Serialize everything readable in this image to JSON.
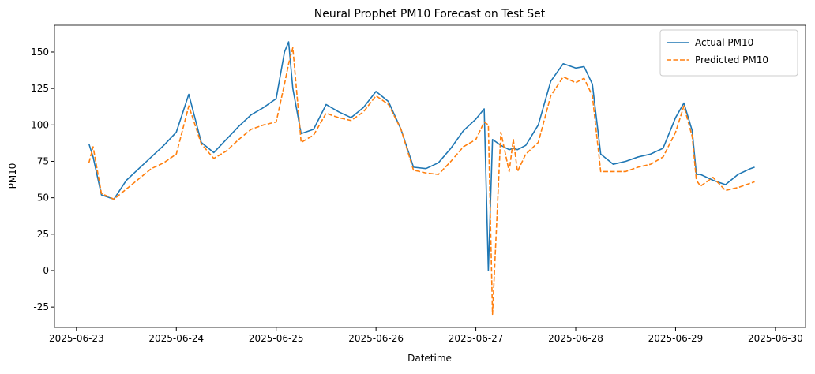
{
  "chart_data": {
    "type": "line",
    "title": "Neural Prophet PM10 Forecast on Test Set",
    "x_label": "Datetime",
    "y_label": "PM10",
    "x": [
      "2025-06-23T03:00",
      "2025-06-23T04:00",
      "2025-06-23T06:00",
      "2025-06-23T09:00",
      "2025-06-23T12:00",
      "2025-06-23T15:00",
      "2025-06-23T18:00",
      "2025-06-23T21:00",
      "2025-06-24T00:00",
      "2025-06-24T03:00",
      "2025-06-24T06:00",
      "2025-06-24T09:00",
      "2025-06-24T12:00",
      "2025-06-24T15:00",
      "2025-06-24T18:00",
      "2025-06-24T21:00",
      "2025-06-25T00:00",
      "2025-06-25T02:00",
      "2025-06-25T03:00",
      "2025-06-25T04:00",
      "2025-06-25T06:00",
      "2025-06-25T09:00",
      "2025-06-25T12:00",
      "2025-06-25T15:00",
      "2025-06-25T18:00",
      "2025-06-25T21:00",
      "2025-06-26T00:00",
      "2025-06-26T03:00",
      "2025-06-26T06:00",
      "2025-06-26T09:00",
      "2025-06-26T12:00",
      "2025-06-26T15:00",
      "2025-06-26T18:00",
      "2025-06-26T21:00",
      "2025-06-27T00:00",
      "2025-06-27T02:00",
      "2025-06-27T03:00",
      "2025-06-27T04:00",
      "2025-06-27T06:00",
      "2025-06-27T08:00",
      "2025-06-27T09:00",
      "2025-06-27T10:00",
      "2025-06-27T12:00",
      "2025-06-27T15:00",
      "2025-06-27T18:00",
      "2025-06-27T21:00",
      "2025-06-28T00:00",
      "2025-06-28T02:00",
      "2025-06-28T04:00",
      "2025-06-28T06:00",
      "2025-06-28T09:00",
      "2025-06-28T12:00",
      "2025-06-28T15:00",
      "2025-06-28T18:00",
      "2025-06-28T21:00",
      "2025-06-29T00:00",
      "2025-06-29T02:00",
      "2025-06-29T04:00",
      "2025-06-29T05:00",
      "2025-06-29T06:00",
      "2025-06-29T09:00",
      "2025-06-29T12:00",
      "2025-06-29T15:00",
      "2025-06-29T18:00",
      "2025-06-29T19:00"
    ],
    "series": [
      {
        "name": "Actual PM10",
        "color": "#1f77b4",
        "style": "solid",
        "values": [
          87,
          78,
          52,
          49,
          62,
          70,
          78,
          86,
          95,
          121,
          88,
          81,
          90,
          99,
          107,
          112,
          118,
          150,
          157,
          125,
          94,
          97,
          114,
          109,
          105,
          112,
          123,
          116,
          97,
          71,
          70,
          74,
          84,
          96,
          104,
          111,
          0,
          90,
          86,
          83,
          84,
          83,
          86,
          100,
          130,
          142,
          139,
          140,
          128,
          80,
          73,
          75,
          78,
          80,
          84,
          105,
          115,
          96,
          66,
          66,
          62,
          59,
          66,
          70,
          71
        ]
      },
      {
        "name": "Predicted PM10",
        "color": "#ff7f0e",
        "style": "dashed",
        "values": [
          74,
          85,
          53,
          49,
          56,
          63,
          70,
          74,
          80,
          113,
          87,
          77,
          82,
          90,
          97,
          100,
          102,
          128,
          142,
          153,
          88,
          93,
          108,
          105,
          103,
          109,
          120,
          114,
          97,
          69,
          67,
          66,
          75,
          85,
          90,
          102,
          100,
          -30,
          95,
          68,
          90,
          68,
          80,
          88,
          120,
          133,
          129,
          132,
          120,
          68,
          68,
          68,
          71,
          73,
          78,
          95,
          113,
          92,
          62,
          58,
          64,
          55,
          57,
          60,
          61
        ]
      }
    ],
    "xlim": [
      "2025-06-22T18:43",
      "2025-06-30T07:14"
    ],
    "xticks": [
      "2025-06-23",
      "2025-06-24",
      "2025-06-25",
      "2025-06-26",
      "2025-06-27",
      "2025-06-28",
      "2025-06-29",
      "2025-06-30"
    ],
    "ylim": [
      -39,
      168.4
    ],
    "yticks": [
      -25,
      0,
      25,
      50,
      75,
      100,
      125,
      150
    ],
    "grid": false,
    "legend": "upper right"
  }
}
